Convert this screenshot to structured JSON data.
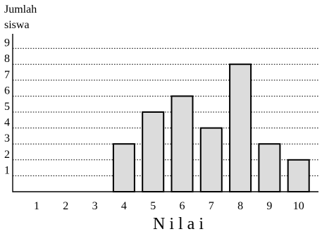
{
  "chart_data": {
    "type": "bar",
    "ylabel_lines": [
      "Jumlah",
      "siswa"
    ],
    "xlabel": "N i l a i",
    "categories": [
      "1",
      "2",
      "3",
      "4",
      "5",
      "6",
      "7",
      "8",
      "9",
      "10"
    ],
    "values": [
      0,
      0,
      0,
      3,
      5,
      6,
      4,
      8,
      3,
      2
    ],
    "ylim": [
      0,
      9
    ],
    "yticks": [
      "1",
      "2",
      "3",
      "4",
      "5",
      "6",
      "7",
      "8",
      "9"
    ],
    "grid": "horizontal dotted",
    "bar_color": "#dcdcdc",
    "bar_outline": "#000000"
  }
}
